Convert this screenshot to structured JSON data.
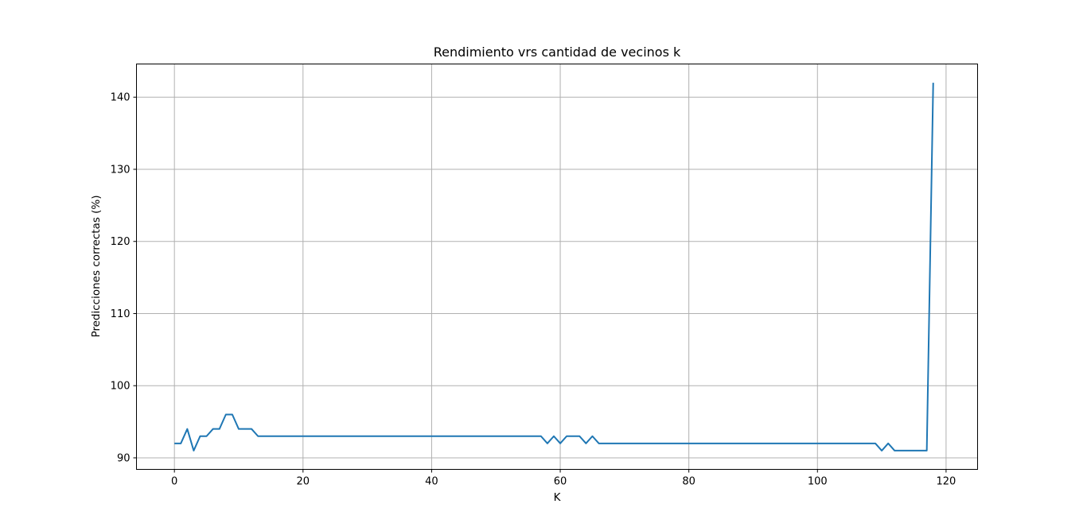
{
  "chart_data": {
    "type": "line",
    "title": "Rendimiento vrs cantidad de vecinos k",
    "xlabel": "K",
    "ylabel": "Predicciones correctas (%)",
    "xlim": [
      -5.9,
      124.9
    ],
    "ylim": [
      88.4,
      144.6
    ],
    "xticks": [
      0,
      20,
      40,
      60,
      80,
      100,
      120
    ],
    "yticks": [
      90,
      100,
      110,
      120,
      130,
      140
    ],
    "grid": true,
    "legend": "none",
    "series": [
      {
        "color": "#1f77b4",
        "x": [
          0,
          1,
          2,
          3,
          4,
          5,
          6,
          7,
          8,
          9,
          10,
          11,
          12,
          13,
          14,
          15,
          16,
          17,
          18,
          19,
          20,
          21,
          22,
          23,
          24,
          25,
          26,
          27,
          28,
          29,
          30,
          31,
          32,
          33,
          34,
          35,
          36,
          37,
          38,
          39,
          40,
          41,
          42,
          43,
          44,
          45,
          46,
          47,
          48,
          49,
          50,
          51,
          52,
          53,
          54,
          55,
          56,
          57,
          58,
          59,
          60,
          61,
          62,
          63,
          64,
          65,
          66,
          67,
          68,
          69,
          70,
          71,
          72,
          73,
          74,
          75,
          76,
          77,
          78,
          79,
          80,
          81,
          82,
          83,
          84,
          85,
          86,
          87,
          88,
          89,
          90,
          91,
          92,
          93,
          94,
          95,
          96,
          97,
          98,
          99,
          100,
          101,
          102,
          103,
          104,
          105,
          106,
          107,
          108,
          109,
          110,
          111,
          112,
          113,
          114,
          115,
          116,
          117,
          118
        ],
        "y": [
          92,
          92,
          94,
          91,
          93,
          93,
          94,
          94,
          96,
          96,
          94,
          94,
          94,
          93,
          93,
          93,
          93,
          93,
          93,
          93,
          93,
          93,
          93,
          93,
          93,
          93,
          93,
          93,
          93,
          93,
          93,
          93,
          93,
          93,
          93,
          93,
          93,
          93,
          93,
          93,
          93,
          93,
          93,
          93,
          93,
          93,
          93,
          93,
          93,
          93,
          93,
          93,
          93,
          93,
          93,
          93,
          93,
          93,
          92,
          93,
          92,
          93,
          93,
          93,
          92,
          93,
          92,
          92,
          92,
          92,
          92,
          92,
          92,
          92,
          92,
          92,
          92,
          92,
          92,
          92,
          92,
          92,
          92,
          92,
          92,
          92,
          92,
          92,
          92,
          92,
          92,
          92,
          92,
          92,
          92,
          92,
          92,
          92,
          92,
          92,
          92,
          92,
          92,
          92,
          92,
          92,
          92,
          92,
          92,
          92,
          91,
          92,
          91,
          91,
          91,
          91,
          91,
          91,
          142
        ]
      }
    ]
  }
}
